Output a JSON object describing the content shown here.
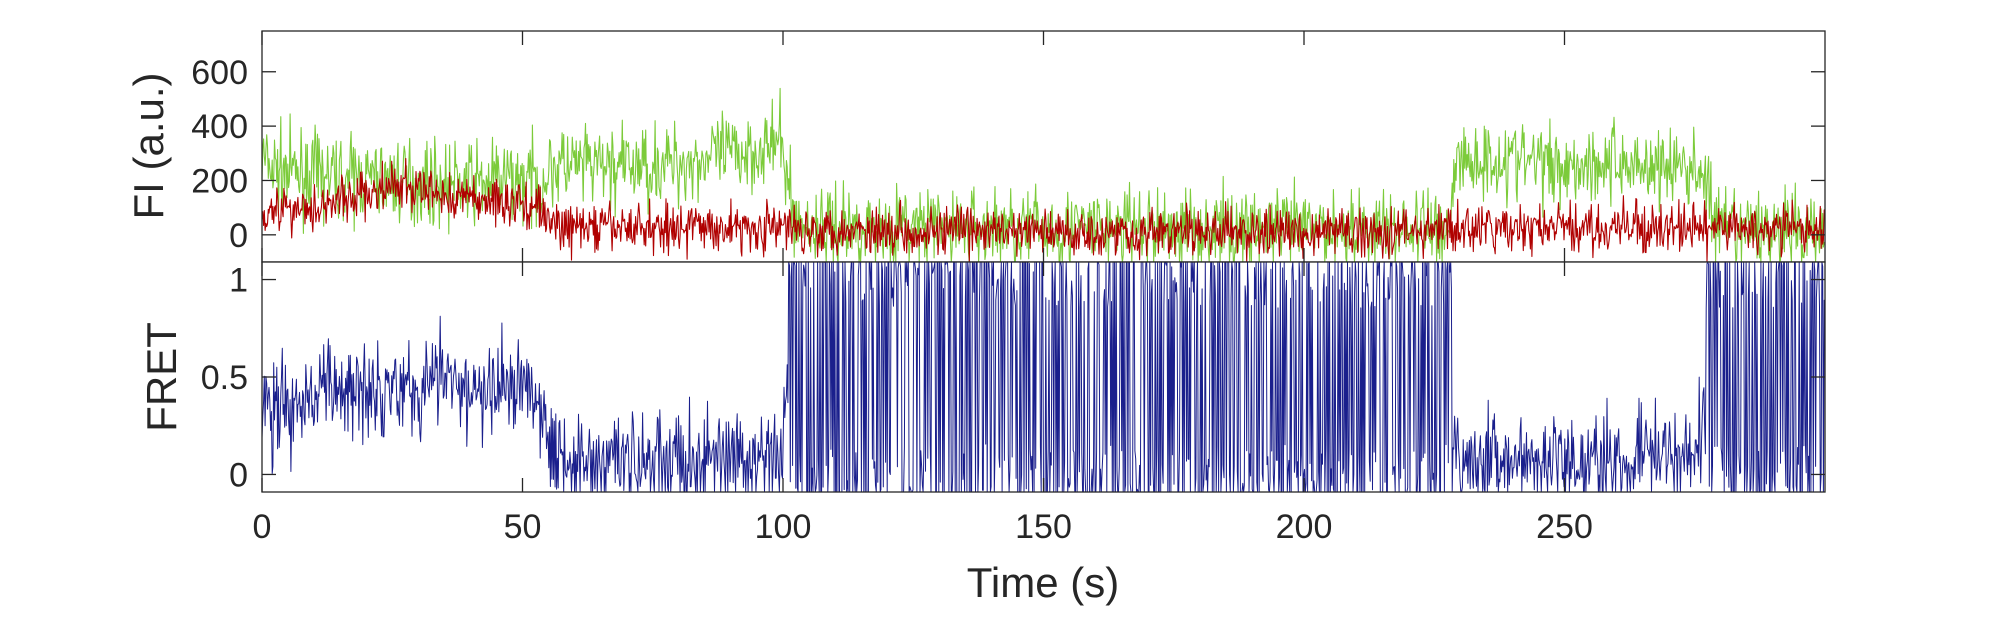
{
  "chart_data": [
    {
      "type": "line",
      "panel": "top",
      "xlabel": "",
      "ylabel": "FI (a.u.)",
      "xlim": [
        0,
        300
      ],
      "ylim": [
        -100,
        750
      ],
      "yticks": [
        0,
        200,
        400,
        600
      ],
      "ytick_labels": [
        "0",
        "200",
        "400",
        "600"
      ],
      "grid": false,
      "series": [
        {
          "color": "#7ccb3a",
          "time": [
            0,
            2,
            5,
            10,
            18,
            25,
            30,
            35,
            40,
            45,
            50,
            54,
            56,
            60,
            70,
            80,
            90,
            95,
            100,
            101,
            103,
            150,
            200,
            228,
            229,
            240,
            250,
            260,
            270,
            275,
            277,
            279,
            300
          ],
          "level": [
            280,
            240,
            230,
            220,
            205,
            200,
            195,
            185,
            185,
            200,
            200,
            195,
            255,
            250,
            250,
            265,
            295,
            320,
            330,
            170,
            30,
            25,
            20,
            25,
            270,
            280,
            260,
            265,
            250,
            235,
            230,
            15,
            15
          ],
          "noise": 75
        },
        {
          "color": "#b00000",
          "time": [
            0,
            10,
            20,
            25,
            30,
            35,
            40,
            45,
            50,
            53,
            56,
            60,
            80,
            100,
            150,
            200,
            250,
            300
          ],
          "level": [
            90,
            105,
            150,
            175,
            165,
            145,
            135,
            125,
            115,
            105,
            30,
            25,
            30,
            25,
            10,
            10,
            25,
            20
          ],
          "noise": 45
        }
      ]
    },
    {
      "type": "line",
      "panel": "bottom",
      "xlabel": "Time (s)",
      "ylabel": "FRET",
      "xlim": [
        0,
        300
      ],
      "ylim": [
        -0.09,
        1.09
      ],
      "yticks": [
        0,
        0.5,
        1
      ],
      "ytick_labels": [
        "0",
        "0.5",
        "1"
      ],
      "xticks": [
        0,
        50,
        100,
        150,
        200,
        250
      ],
      "xtick_labels": [
        "0",
        "50",
        "100",
        "150",
        "200",
        "250"
      ],
      "grid": false,
      "series": [
        {
          "color": "#1a1f8c",
          "time": [
            0,
            5,
            10,
            20,
            25,
            30,
            35,
            40,
            45,
            50,
            53,
            56,
            60,
            80,
            100,
            101,
            228,
            229,
            240,
            260,
            276,
            277,
            300
          ],
          "level": [
            0.33,
            0.35,
            0.4,
            0.47,
            0.47,
            0.45,
            0.5,
            0.4,
            0.42,
            0.48,
            0.45,
            0.1,
            0.08,
            0.06,
            0.08,
            0.5,
            0.5,
            0.08,
            0.05,
            0.06,
            0.15,
            0.5,
            0.5
          ],
          "noise": 0.13,
          "burst_spans": [
            [
              101,
              228.5
            ],
            [
              277,
              300
            ]
          ]
        }
      ]
    }
  ]
}
